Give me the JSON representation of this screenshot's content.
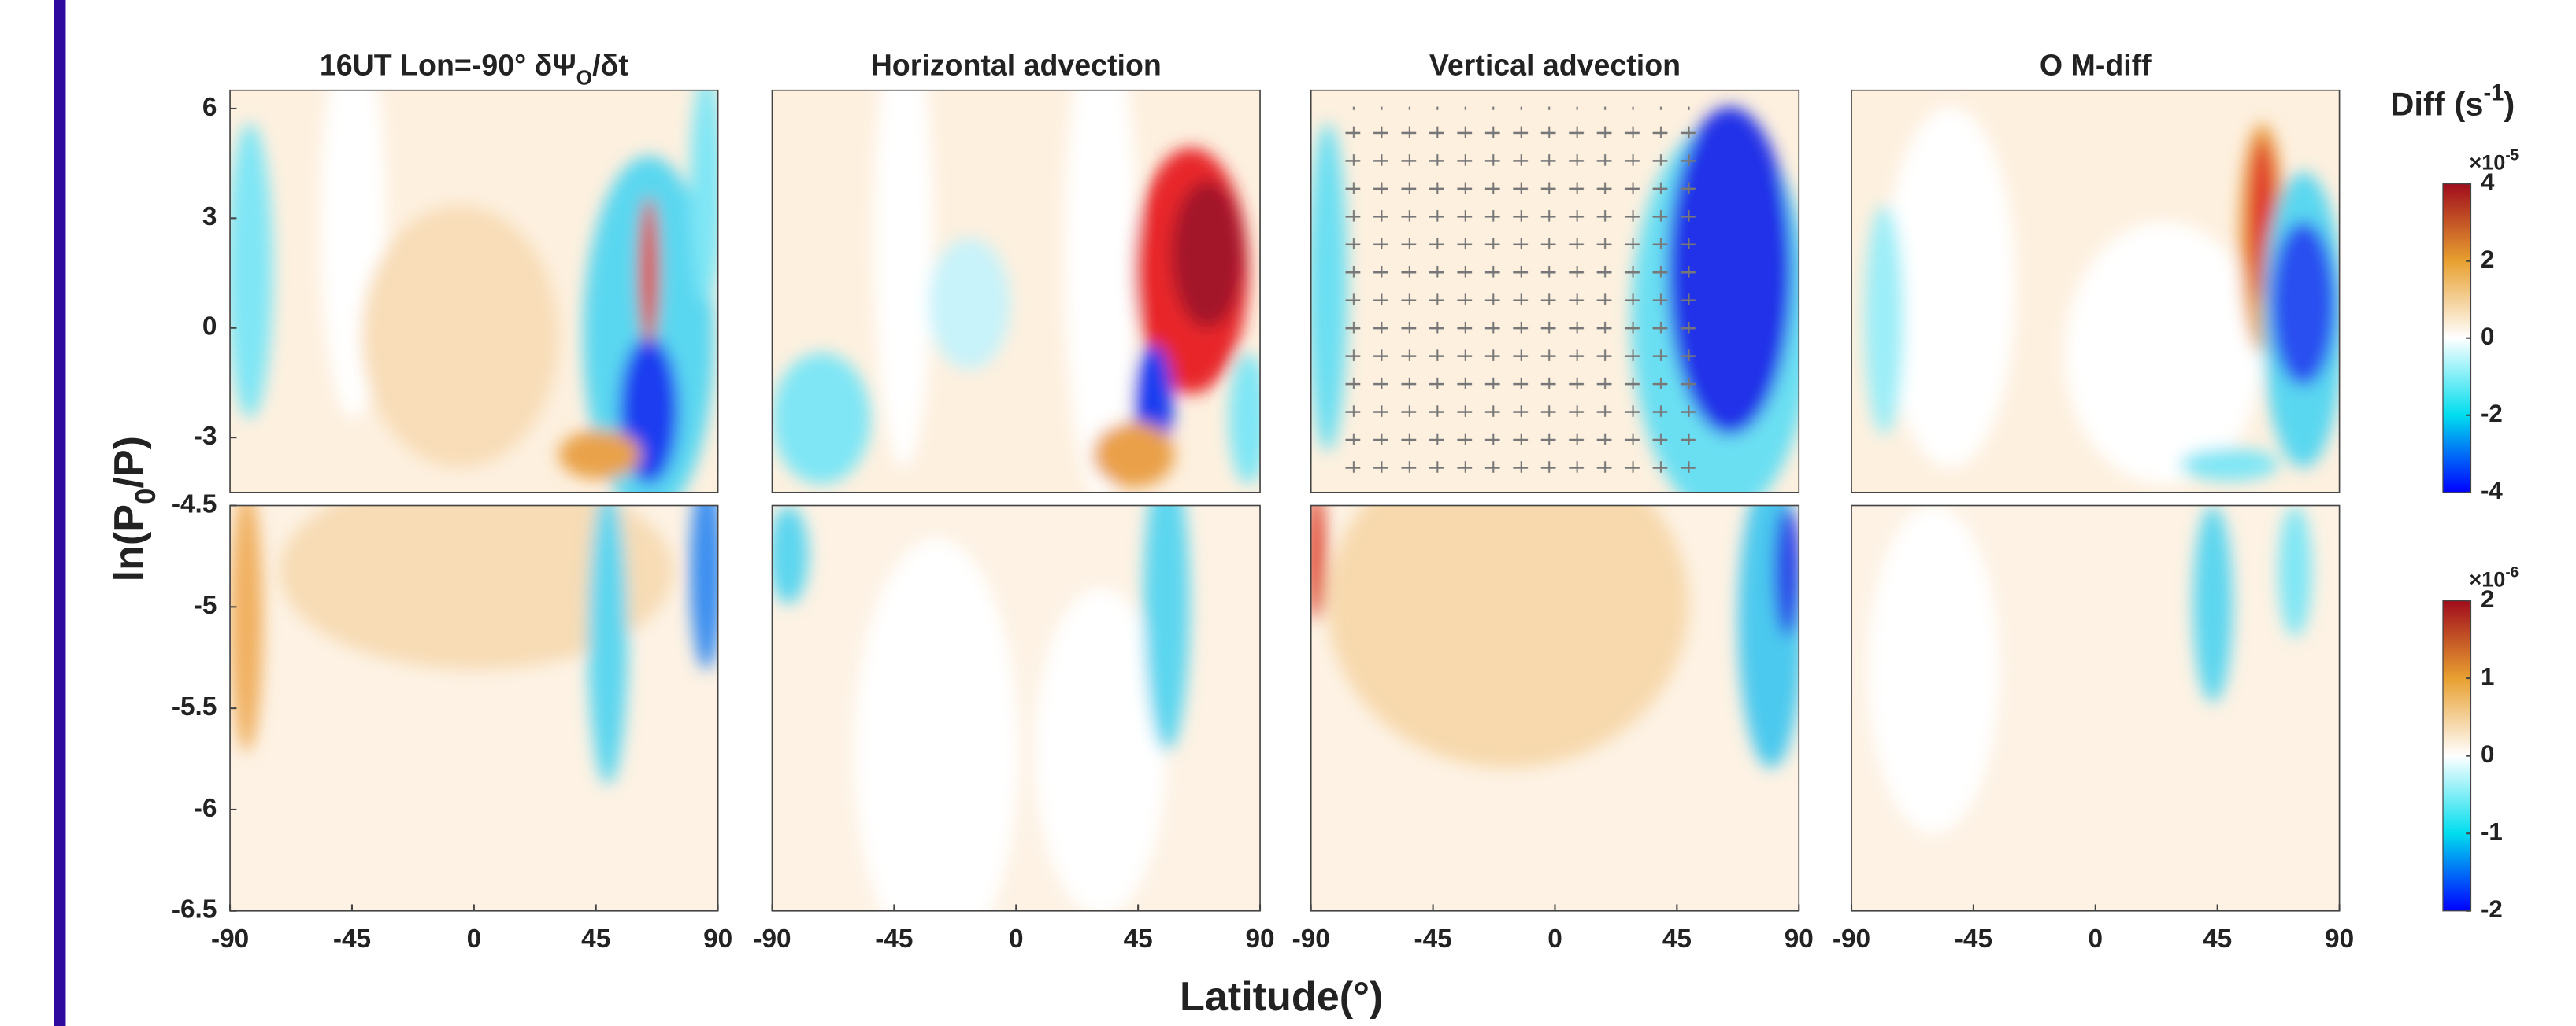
{
  "figure": {
    "ylabel": [
      "ln(P",
      "0",
      "/P)"
    ],
    "xlabel": "Latitude(°)",
    "colorbar_title": [
      "Diff (s",
      "-1",
      ")"
    ],
    "colormap": [
      "#0000ff",
      "#00ddee",
      "#ffffff",
      "#e8a030",
      "#a00c1c"
    ],
    "colorbars": [
      {
        "ylim": [
          -4,
          4
        ],
        "yticks": [
          -4,
          -2,
          0,
          2,
          4
        ],
        "exponent": [
          "×10",
          "-5"
        ]
      },
      {
        "ylim": [
          -2,
          2
        ],
        "yticks": [
          -2,
          -1,
          0,
          1,
          2
        ],
        "exponent": [
          "×10",
          "-6"
        ]
      }
    ]
  },
  "chart_data": [
    {
      "type": "contour",
      "title": [
        "16UT Lon=-90° δΨ",
        "O",
        "/δt"
      ],
      "xlim": [
        -90,
        90
      ],
      "ylim": [
        -4.5,
        6.5
      ],
      "yticks": [
        -3,
        0,
        3,
        6
      ]
    },
    {
      "type": "contour",
      "title": "Horizontal advection",
      "xlim": [
        -90,
        90
      ],
      "ylim": [
        -4.5,
        6.5
      ]
    },
    {
      "type": "contour",
      "title": "Vertical advection",
      "xlim": [
        -90,
        90
      ],
      "ylim": [
        -4.5,
        6.5
      ]
    },
    {
      "type": "contour",
      "title": "O M-diff",
      "xlim": [
        -90,
        90
      ],
      "ylim": [
        -4.5,
        6.5
      ]
    },
    {
      "type": "contour",
      "xlim": [
        -90,
        90
      ],
      "ylim": [
        -6.5,
        -4.5
      ],
      "yticks": [
        -6.5,
        -6,
        -5.5,
        -5,
        -4.5
      ],
      "xticks": [
        -90,
        -45,
        0,
        45,
        90
      ]
    },
    {
      "type": "contour",
      "xlim": [
        -90,
        90
      ],
      "ylim": [
        -6.5,
        -4.5
      ],
      "xticks": [
        -90,
        -45,
        0,
        45,
        90
      ]
    },
    {
      "type": "contour",
      "xlim": [
        -90,
        90
      ],
      "ylim": [
        -6.5,
        -4.5
      ],
      "xticks": [
        -90,
        -45,
        0,
        45,
        90
      ]
    },
    {
      "type": "contour",
      "xlim": [
        -90,
        90
      ],
      "ylim": [
        -6.5,
        -4.5
      ],
      "xticks": [
        -90,
        -45,
        0,
        45,
        90
      ]
    }
  ]
}
